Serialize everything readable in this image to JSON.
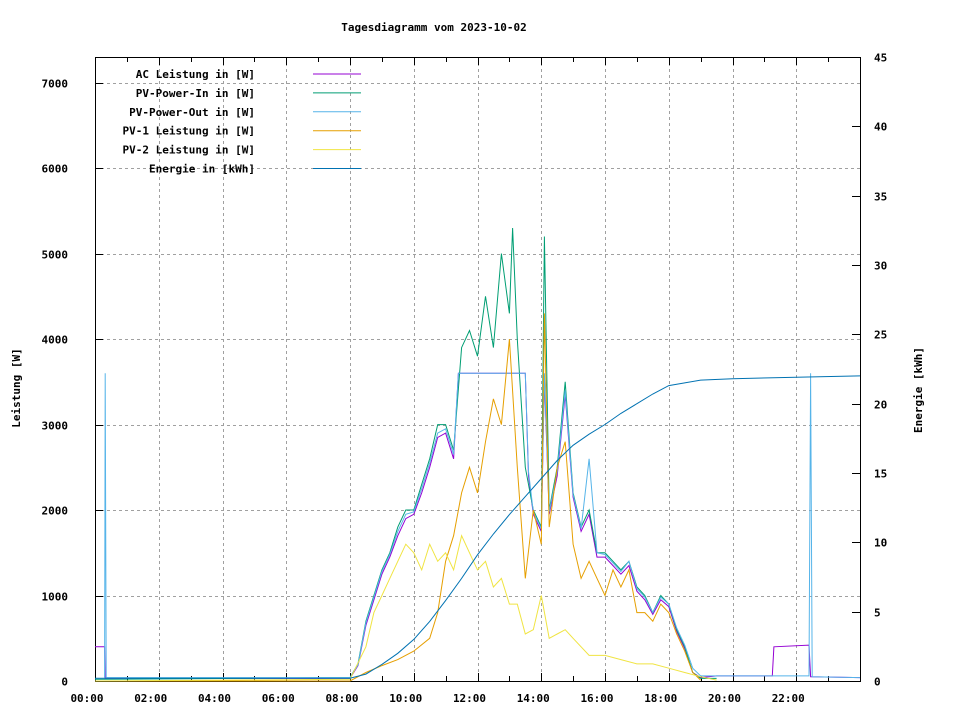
{
  "chart_data": {
    "type": "line",
    "title": "Tagesdiagramm vom 2023-10-02",
    "xlabel": "",
    "ylabel": "Leistung [W]",
    "y2label": "Energie [kWh]",
    "xlim_hours": [
      0,
      24
    ],
    "ylim": [
      0,
      7300
    ],
    "y2lim": [
      0,
      45
    ],
    "x_ticks": [
      "00:00",
      "02:00",
      "04:00",
      "06:00",
      "08:00",
      "10:00",
      "12:00",
      "14:00",
      "16:00",
      "18:00",
      "20:00",
      "22:00"
    ],
    "y_ticks": [
      "0",
      "1000",
      "2000",
      "3000",
      "4000",
      "5000",
      "6000",
      "7000"
    ],
    "y2_ticks": [
      "0",
      "5",
      "10",
      "15",
      "20",
      "25",
      "30",
      "35",
      "40",
      "45"
    ],
    "grid": true,
    "legend_position": "top-left",
    "series": [
      {
        "name": "AC Leistung in [W]",
        "color": "#9400d3",
        "axis": "left",
        "points": [
          [
            0,
            400
          ],
          [
            0.3,
            400
          ],
          [
            0.32,
            30
          ],
          [
            8,
            30
          ],
          [
            8.25,
            180
          ],
          [
            8.5,
            650
          ],
          [
            8.75,
            950
          ],
          [
            9,
            1250
          ],
          [
            9.25,
            1450
          ],
          [
            9.5,
            1700
          ],
          [
            9.75,
            1900
          ],
          [
            10,
            1950
          ],
          [
            10.25,
            2200
          ],
          [
            10.5,
            2500
          ],
          [
            10.75,
            2850
          ],
          [
            11,
            2900
          ],
          [
            11.25,
            2600
          ],
          [
            11.4,
            3600
          ],
          [
            13.5,
            3600
          ],
          [
            13.6,
            2400
          ],
          [
            13.75,
            1950
          ],
          [
            14,
            1750
          ],
          [
            14.1,
            3550
          ],
          [
            14.25,
            1950
          ],
          [
            14.5,
            2400
          ],
          [
            14.75,
            3350
          ],
          [
            15,
            2150
          ],
          [
            15.25,
            1750
          ],
          [
            15.5,
            1950
          ],
          [
            15.75,
            1450
          ],
          [
            16,
            1450
          ],
          [
            16.25,
            1350
          ],
          [
            16.5,
            1250
          ],
          [
            16.75,
            1350
          ],
          [
            17,
            1050
          ],
          [
            17.25,
            950
          ],
          [
            17.5,
            780
          ],
          [
            17.75,
            950
          ],
          [
            18,
            870
          ],
          [
            18.25,
            580
          ],
          [
            18.5,
            380
          ],
          [
            18.75,
            100
          ],
          [
            19,
            40
          ],
          [
            19.5,
            60
          ],
          [
            21.25,
            60
          ],
          [
            21.3,
            400
          ],
          [
            22.4,
            420
          ],
          [
            22.45,
            50
          ],
          [
            24,
            40
          ]
        ]
      },
      {
        "name": "PV-Power-In in [W]",
        "color": "#009e73",
        "axis": "left",
        "points": [
          [
            0,
            20
          ],
          [
            8,
            40
          ],
          [
            8.25,
            200
          ],
          [
            8.5,
            700
          ],
          [
            8.75,
            1000
          ],
          [
            9,
            1300
          ],
          [
            9.25,
            1500
          ],
          [
            9.5,
            1800
          ],
          [
            9.75,
            2000
          ],
          [
            10,
            2000
          ],
          [
            10.25,
            2300
          ],
          [
            10.5,
            2600
          ],
          [
            10.75,
            3000
          ],
          [
            11,
            3000
          ],
          [
            11.25,
            2700
          ],
          [
            11.5,
            3900
          ],
          [
            11.75,
            4100
          ],
          [
            12,
            3800
          ],
          [
            12.25,
            4500
          ],
          [
            12.5,
            3900
          ],
          [
            12.75,
            5000
          ],
          [
            13,
            4300
          ],
          [
            13.1,
            5300
          ],
          [
            13.25,
            4000
          ],
          [
            13.5,
            2500
          ],
          [
            13.75,
            2000
          ],
          [
            14,
            1800
          ],
          [
            14.1,
            5200
          ],
          [
            14.25,
            2000
          ],
          [
            14.5,
            2500
          ],
          [
            14.75,
            3500
          ],
          [
            15,
            2200
          ],
          [
            15.25,
            1800
          ],
          [
            15.5,
            2000
          ],
          [
            15.75,
            1500
          ],
          [
            16,
            1500
          ],
          [
            16.25,
            1400
          ],
          [
            16.5,
            1300
          ],
          [
            16.75,
            1400
          ],
          [
            17,
            1100
          ],
          [
            17.25,
            1000
          ],
          [
            17.5,
            800
          ],
          [
            17.75,
            1000
          ],
          [
            18,
            900
          ],
          [
            18.25,
            600
          ],
          [
            18.5,
            400
          ],
          [
            18.75,
            100
          ],
          [
            19,
            30
          ],
          [
            19.5,
            30
          ]
        ]
      },
      {
        "name": "PV-Power-Out in [W]",
        "color": "#56b4e9",
        "axis": "left",
        "points": [
          [
            0.3,
            40
          ],
          [
            0.32,
            3600
          ],
          [
            0.35,
            40
          ],
          [
            8,
            40
          ],
          [
            8.25,
            190
          ],
          [
            8.5,
            680
          ],
          [
            8.75,
            980
          ],
          [
            9,
            1280
          ],
          [
            9.25,
            1480
          ],
          [
            9.5,
            1750
          ],
          [
            9.75,
            1950
          ],
          [
            10,
            1980
          ],
          [
            10.25,
            2250
          ],
          [
            10.5,
            2550
          ],
          [
            10.75,
            2900
          ],
          [
            11,
            2950
          ],
          [
            11.25,
            2650
          ],
          [
            11.4,
            3600
          ],
          [
            13.5,
            3600
          ],
          [
            13.6,
            2450
          ],
          [
            13.75,
            1980
          ],
          [
            14,
            1780
          ],
          [
            14.1,
            3600
          ],
          [
            14.25,
            1980
          ],
          [
            14.5,
            2450
          ],
          [
            14.75,
            3400
          ],
          [
            15,
            2180
          ],
          [
            15.25,
            1780
          ],
          [
            15.5,
            2600
          ],
          [
            15.75,
            1500
          ],
          [
            16,
            1480
          ],
          [
            16.25,
            1380
          ],
          [
            16.5,
            1280
          ],
          [
            16.75,
            1400
          ],
          [
            17,
            1080
          ],
          [
            17.25,
            980
          ],
          [
            17.5,
            800
          ],
          [
            17.75,
            980
          ],
          [
            18,
            900
          ],
          [
            18.25,
            620
          ],
          [
            18.5,
            420
          ],
          [
            18.75,
            150
          ],
          [
            19,
            60
          ],
          [
            19.5,
            60
          ],
          [
            22.4,
            60
          ],
          [
            22.45,
            3600
          ],
          [
            22.5,
            50
          ],
          [
            24,
            40
          ]
        ]
      },
      {
        "name": "PV-1 Leistung in [W]",
        "color": "#e69f00",
        "axis": "left",
        "points": [
          [
            0,
            0
          ],
          [
            8,
            0
          ],
          [
            8.5,
            100
          ],
          [
            9,
            180
          ],
          [
            9.5,
            250
          ],
          [
            10,
            350
          ],
          [
            10.5,
            500
          ],
          [
            10.75,
            800
          ],
          [
            11,
            1400
          ],
          [
            11.25,
            1700
          ],
          [
            11.5,
            2200
          ],
          [
            11.75,
            2500
          ],
          [
            12,
            2200
          ],
          [
            12.25,
            2800
          ],
          [
            12.5,
            3300
          ],
          [
            12.75,
            3000
          ],
          [
            13,
            4000
          ],
          [
            13.25,
            2500
          ],
          [
            13.5,
            1200
          ],
          [
            13.75,
            2000
          ],
          [
            14,
            1600
          ],
          [
            14.1,
            4300
          ],
          [
            14.25,
            1800
          ],
          [
            14.5,
            2500
          ],
          [
            14.75,
            2800
          ],
          [
            15,
            1600
          ],
          [
            15.25,
            1200
          ],
          [
            15.5,
            1400
          ],
          [
            15.75,
            1200
          ],
          [
            16,
            1000
          ],
          [
            16.25,
            1300
          ],
          [
            16.5,
            1100
          ],
          [
            16.75,
            1300
          ],
          [
            17,
            800
          ],
          [
            17.25,
            800
          ],
          [
            17.5,
            700
          ],
          [
            17.75,
            900
          ],
          [
            18,
            800
          ],
          [
            18.25,
            550
          ],
          [
            18.5,
            350
          ],
          [
            18.75,
            100
          ],
          [
            19,
            10
          ]
        ]
      },
      {
        "name": "PV-2 Leistung in [W]",
        "color": "#f0e442",
        "axis": "left",
        "points": [
          [
            0,
            0
          ],
          [
            8,
            20
          ],
          [
            8.5,
            400
          ],
          [
            8.75,
            800
          ],
          [
            9,
            1000
          ],
          [
            9.25,
            1200
          ],
          [
            9.5,
            1400
          ],
          [
            9.75,
            1600
          ],
          [
            10,
            1500
          ],
          [
            10.25,
            1300
          ],
          [
            10.5,
            1600
          ],
          [
            10.75,
            1400
          ],
          [
            11,
            1500
          ],
          [
            11.25,
            1300
          ],
          [
            11.5,
            1700
          ],
          [
            11.75,
            1500
          ],
          [
            12,
            1300
          ],
          [
            12.25,
            1400
          ],
          [
            12.5,
            1100
          ],
          [
            12.75,
            1200
          ],
          [
            13,
            900
          ],
          [
            13.25,
            900
          ],
          [
            13.5,
            550
          ],
          [
            13.75,
            600
          ],
          [
            14,
            1000
          ],
          [
            14.25,
            500
          ],
          [
            14.5,
            550
          ],
          [
            14.75,
            600
          ],
          [
            15,
            500
          ],
          [
            15.5,
            300
          ],
          [
            16,
            300
          ],
          [
            16.5,
            250
          ],
          [
            17,
            200
          ],
          [
            17.5,
            200
          ],
          [
            18,
            150
          ],
          [
            18.5,
            100
          ],
          [
            19,
            50
          ],
          [
            19.5,
            10
          ]
        ]
      },
      {
        "name": "Energie in [kWh]",
        "color": "#0072b2",
        "axis": "right",
        "points": [
          [
            0,
            0.2
          ],
          [
            8,
            0.2
          ],
          [
            8.5,
            0.5
          ],
          [
            9,
            1.2
          ],
          [
            9.5,
            2
          ],
          [
            10,
            3
          ],
          [
            10.5,
            4.3
          ],
          [
            11,
            5.8
          ],
          [
            11.5,
            7.4
          ],
          [
            12,
            9.1
          ],
          [
            12.5,
            10.6
          ],
          [
            13,
            12
          ],
          [
            13.5,
            13.3
          ],
          [
            14,
            14.6
          ],
          [
            14.5,
            15.9
          ],
          [
            15,
            17
          ],
          [
            15.5,
            17.8
          ],
          [
            16,
            18.5
          ],
          [
            16.5,
            19.3
          ],
          [
            17,
            20
          ],
          [
            17.5,
            20.7
          ],
          [
            18,
            21.3
          ],
          [
            18.5,
            21.5
          ],
          [
            19,
            21.7
          ],
          [
            20,
            21.8
          ],
          [
            22,
            21.9
          ],
          [
            24,
            22
          ]
        ]
      }
    ]
  }
}
